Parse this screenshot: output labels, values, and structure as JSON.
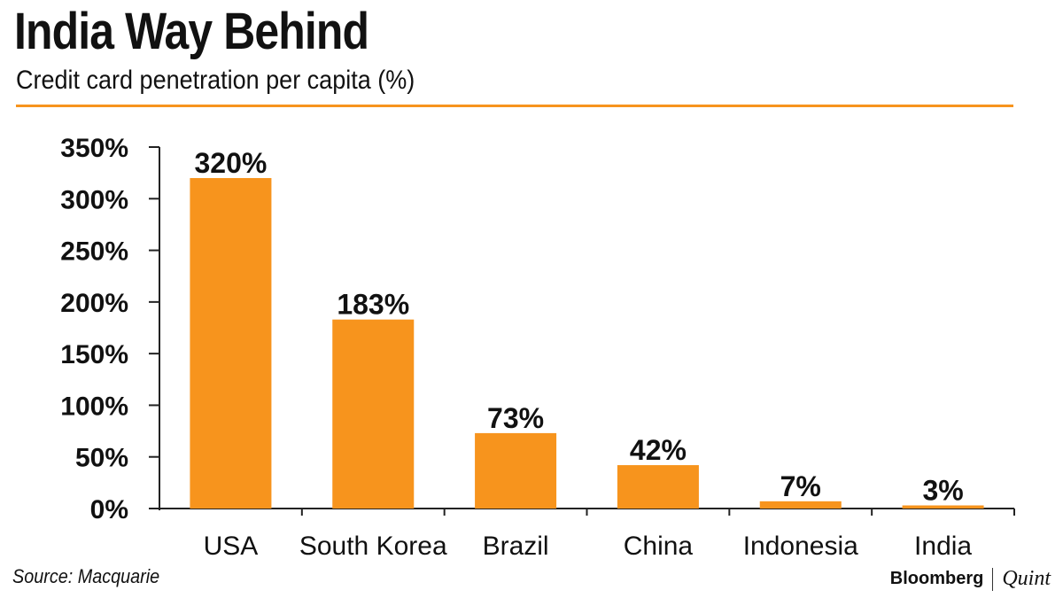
{
  "colors": {
    "bar": "#F7941D",
    "divider": "#F7941D",
    "axis": "#222222"
  },
  "header": {
    "title": "India Way Behind",
    "subtitle": "Credit card penetration per capita (%)"
  },
  "footer": {
    "source": "Source: Macquarie",
    "brand_a": "Bloomberg",
    "brand_b": "Quint"
  },
  "chart_data": {
    "type": "bar",
    "title": "India Way Behind",
    "subtitle": "Credit card penetration per capita (%)",
    "categories": [
      "USA",
      "South Korea",
      "Brazil",
      "China",
      "Indonesia",
      "India"
    ],
    "values": [
      320,
      183,
      73,
      42,
      7,
      3
    ],
    "data_labels": [
      "320%",
      "183%",
      "73%",
      "42%",
      "7%",
      "3%"
    ],
    "ylim": [
      0,
      350
    ],
    "yticks": [
      0,
      50,
      100,
      150,
      200,
      250,
      300,
      350
    ],
    "ytick_labels": [
      "0%",
      "50%",
      "100%",
      "150%",
      "200%",
      "250%",
      "300%",
      "350%"
    ],
    "grid": false,
    "legend": "none",
    "xlabel": "",
    "ylabel": ""
  }
}
